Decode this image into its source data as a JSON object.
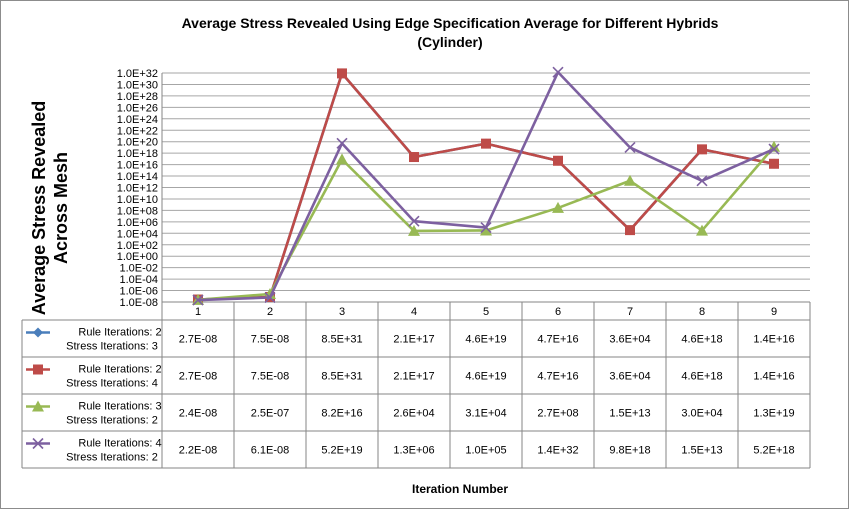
{
  "chart_data": {
    "type": "line",
    "title_line1": "Average Stress Revealed Using Edge Specification Average for Different Hybrids",
    "title_line2": "(Cylinder)",
    "xlabel": "Iteration Number",
    "ylabel_line1": "Average Stress Revealed",
    "ylabel_line2": "Across Mesh",
    "y_scale": "log",
    "ylim": [
      1e-08,
      1e+32
    ],
    "y_ticks": [
      "1.0E-08",
      "1.0E-06",
      "1.0E-04",
      "1.0E-02",
      "1.0E+00",
      "1.0E+02",
      "1.0E+04",
      "1.0E+06",
      "1.0E+08",
      "1.0E+10",
      "1.0E+12",
      "1.0E+14",
      "1.0E+16",
      "1.0E+18",
      "1.0E+20",
      "1.0E+22",
      "1.0E+24",
      "1.0E+26",
      "1.0E+28",
      "1.0E+30",
      "1.0E+32"
    ],
    "categories": [
      "1",
      "2",
      "3",
      "4",
      "5",
      "6",
      "7",
      "8",
      "9"
    ],
    "grid": true,
    "legend": "data-table",
    "series": [
      {
        "name_line1": "Rule Iterations: 2",
        "name_line2": "Stress Iterations: 3",
        "color": "#4a7ebb",
        "marker": "diamond",
        "values": [
          2.7e-08,
          7.5e-08,
          8.5e+31,
          2.1e+17,
          4.6e+19,
          4.7e+16,
          36000.0,
          4.6e+18,
          1.4e+16
        ],
        "labels": [
          "2.7E-08",
          "7.5E-08",
          "8.5E+31",
          "2.1E+17",
          "4.6E+19",
          "4.7E+16",
          "3.6E+04",
          "4.6E+18",
          "1.4E+16"
        ]
      },
      {
        "name_line1": "Rule Iterations: 2",
        "name_line2": "Stress Iterations: 4",
        "color": "#be4b48",
        "marker": "square",
        "values": [
          2.7e-08,
          7.5e-08,
          8.5e+31,
          2.1e+17,
          4.6e+19,
          4.7e+16,
          36000.0,
          4.6e+18,
          1.4e+16
        ],
        "labels": [
          "2.7E-08",
          "7.5E-08",
          "8.5E+31",
          "2.1E+17",
          "4.6E+19",
          "4.7E+16",
          "3.6E+04",
          "4.6E+18",
          "1.4E+16"
        ]
      },
      {
        "name_line1": "Rule Iterations: 3",
        "name_line2": "Stress Iterations: 2",
        "color": "#98b954",
        "marker": "triangle",
        "values": [
          2.4e-08,
          2.5e-07,
          8.2e+16,
          26000.0,
          31000.0,
          270000000.0,
          15000000000000.0,
          30000.0,
          1.3e+19
        ],
        "labels": [
          "2.4E-08",
          "2.5E-07",
          "8.2E+16",
          "2.6E+04",
          "3.1E+04",
          "2.7E+08",
          "1.5E+13",
          "3.0E+04",
          "1.3E+19"
        ]
      },
      {
        "name_line1": "Rule Iterations: 4",
        "name_line2": "Stress Iterations: 2",
        "color": "#7d60a0",
        "marker": "x",
        "values": [
          2.2e-08,
          6.1e-08,
          5.2e+19,
          1300000.0,
          100000.0,
          1.4e+32,
          9.8e+18,
          15000000000000.0,
          5.2e+18
        ],
        "labels": [
          "2.2E-08",
          "6.1E-08",
          "5.2E+19",
          "1.3E+06",
          "1.0E+05",
          "1.4E+32",
          "9.8E+18",
          "1.5E+13",
          "5.2E+18"
        ]
      }
    ]
  }
}
